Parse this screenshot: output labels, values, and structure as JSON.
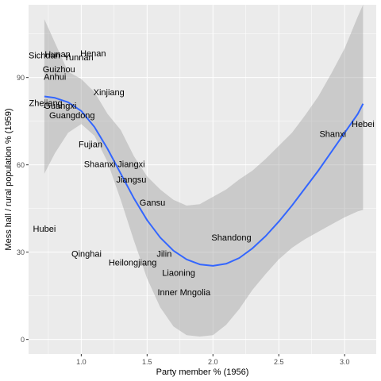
{
  "chart_data": {
    "type": "scatter",
    "title": "",
    "xlabel": "Party member % (1956)",
    "ylabel": "Mess hall / rural population % (1959)",
    "xlim": [
      0.6,
      3.24
    ],
    "ylim": [
      -5,
      115
    ],
    "x_ticks": [
      1.0,
      1.5,
      2.0,
      2.5,
      3.0
    ],
    "x_tick_labels": [
      "1.0",
      "1.5",
      "2.0",
      "2.5",
      "3.0"
    ],
    "y_ticks": [
      0,
      30,
      60,
      90
    ],
    "y_tick_labels": [
      "0",
      "30",
      "60",
      "90"
    ],
    "grid": true,
    "background": "#ebebeb",
    "grid_color": "#ffffff",
    "smooth_color": "#3366ff",
    "ribbon_color": "#999999",
    "label_color": "#000000",
    "points": [
      {
        "label": "Sichuan",
        "x": 0.72,
        "y": 97.6
      },
      {
        "label": "Hunan",
        "x": 0.82,
        "y": 98.1
      },
      {
        "label": "Yunnan",
        "x": 0.98,
        "y": 97.0
      },
      {
        "label": "Henan",
        "x": 1.09,
        "y": 98.3
      },
      {
        "label": "Guizhou",
        "x": 0.83,
        "y": 92.9
      },
      {
        "label": "Anhui",
        "x": 0.8,
        "y": 90.3
      },
      {
        "label": "Xinjiang",
        "x": 1.21,
        "y": 85.0
      },
      {
        "label": "Zhejiang",
        "x": 0.73,
        "y": 81.3
      },
      {
        "label": "Guangxi",
        "x": 0.84,
        "y": 80.4
      },
      {
        "label": "Guangdong",
        "x": 0.93,
        "y": 77.1
      },
      {
        "label": "Fujian",
        "x": 1.07,
        "y": 67.1
      },
      {
        "label": "Shaanxi",
        "x": 1.14,
        "y": 60.3
      },
      {
        "label": "Jiangxi",
        "x": 1.38,
        "y": 60.3
      },
      {
        "label": "Jiangsu",
        "x": 1.38,
        "y": 55.0
      },
      {
        "label": "Gansu",
        "x": 1.54,
        "y": 47.1
      },
      {
        "label": "Shandong",
        "x": 2.14,
        "y": 35.0
      },
      {
        "label": "Hubei",
        "x": 0.72,
        "y": 38.1
      },
      {
        "label": "Qinghai",
        "x": 1.04,
        "y": 29.5
      },
      {
        "label": "Heilongjiang",
        "x": 1.39,
        "y": 26.5
      },
      {
        "label": "Jilin",
        "x": 1.63,
        "y": 29.5
      },
      {
        "label": "Liaoning",
        "x": 1.74,
        "y": 22.9
      },
      {
        "label": "Inner Mngolia",
        "x": 1.78,
        "y": 16.2
      },
      {
        "label": "Shanxi",
        "x": 2.91,
        "y": 70.6
      },
      {
        "label": "Hebei",
        "x": 3.14,
        "y": 74.0
      }
    ],
    "smooth_line": {
      "x": [
        0.72,
        0.8,
        0.9,
        1.0,
        1.1,
        1.2,
        1.3,
        1.4,
        1.5,
        1.6,
        1.7,
        1.8,
        1.9,
        2.0,
        2.1,
        2.2,
        2.3,
        2.4,
        2.5,
        2.6,
        2.7,
        2.8,
        2.9,
        3.0,
        3.1,
        3.14
      ],
      "y": [
        83.5,
        83.0,
        81.5,
        78.5,
        73.0,
        65.5,
        57.0,
        48.5,
        41.0,
        35.0,
        30.5,
        27.5,
        25.8,
        25.3,
        26.0,
        28.0,
        31.3,
        35.5,
        40.5,
        46.0,
        52.0,
        58.0,
        64.5,
        71.0,
        77.5,
        81.0
      ],
      "lower": [
        57.0,
        64.0,
        71.0,
        74.0,
        70.0,
        61.0,
        48.0,
        34.0,
        21.0,
        11.0,
        4.5,
        1.5,
        1.0,
        1.5,
        5.0,
        10.5,
        17.0,
        22.5,
        27.5,
        31.5,
        34.5,
        37.0,
        39.5,
        42.0,
        44.0,
        44.5
      ],
      "upper": [
        110.0,
        102.0,
        92.0,
        89.5,
        85.0,
        77.5,
        72.0,
        63.0,
        56.0,
        51.5,
        48.0,
        46.0,
        46.5,
        49.0,
        51.5,
        55.0,
        58.0,
        62.0,
        66.5,
        71.0,
        77.0,
        83.5,
        91.5,
        100.0,
        111.0,
        117.0
      ]
    }
  }
}
